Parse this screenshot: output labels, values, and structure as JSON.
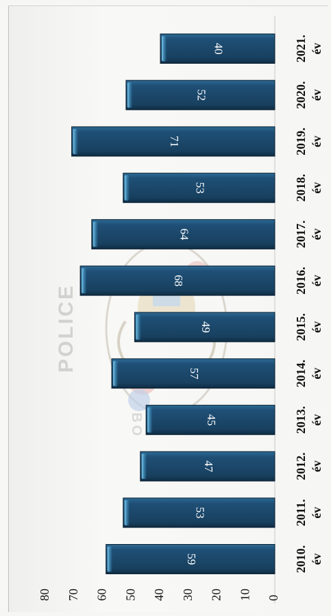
{
  "chart_data": {
    "type": "bar",
    "orientation": "rotated-90",
    "categories": [
      "2010. év",
      "2011. év",
      "2012. év",
      "2013. év",
      "2014. év",
      "2015. év",
      "2016. év",
      "2017. év",
      "2018. év",
      "2019. év",
      "2020. év",
      "2021. év"
    ],
    "category_years": [
      "2010.",
      "2011.",
      "2012.",
      "2013.",
      "2014.",
      "2015.",
      "2016.",
      "2017.",
      "2018.",
      "2019.",
      "2020.",
      "2021."
    ],
    "category_suffix": "év",
    "values": [
      59,
      53,
      47,
      45,
      57,
      49,
      68,
      64,
      53,
      71,
      52,
      40
    ],
    "ylim": [
      0,
      80
    ],
    "yticks": [
      "0",
      "10",
      "20",
      "30",
      "40",
      "50",
      "60",
      "70",
      "80"
    ],
    "title": "",
    "xlabel": "",
    "ylabel": "",
    "grid": false,
    "bar_color": "#1f4d73"
  },
  "watermark": {
    "text": "POLICE",
    "partial_text": "BO"
  }
}
